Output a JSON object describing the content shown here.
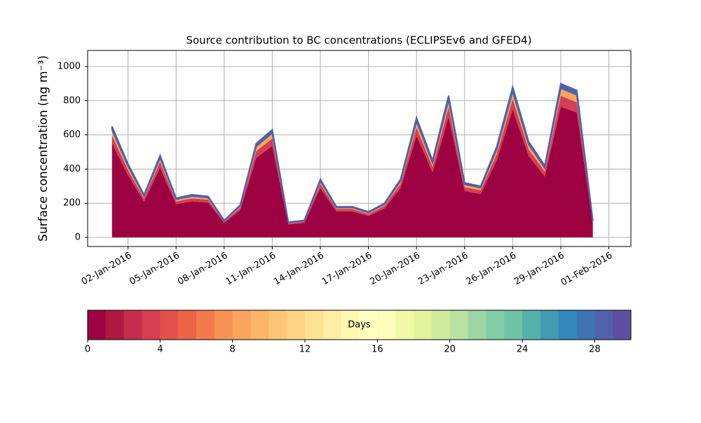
{
  "chart_data": {
    "type": "stacked_area",
    "title": "Source contribution to BC concentrations (ECLIPSEv6 and GFED4)",
    "ylabel": "Surface concentration (ng m⁻³)",
    "x": [
      "2016-01-01",
      "2016-01-02",
      "2016-01-03",
      "2016-01-04",
      "2016-01-05",
      "2016-01-06",
      "2016-01-07",
      "2016-01-08",
      "2016-01-09",
      "2016-01-10",
      "2016-01-11",
      "2016-01-12",
      "2016-01-13",
      "2016-01-14",
      "2016-01-15",
      "2016-01-16",
      "2016-01-17",
      "2016-01-18",
      "2016-01-19",
      "2016-01-20",
      "2016-01-21",
      "2016-01-22",
      "2016-01-23",
      "2016-01-24",
      "2016-01-25",
      "2016-01-26",
      "2016-01-27",
      "2016-01-28",
      "2016-01-29",
      "2016-01-30",
      "2016-01-31"
    ],
    "series": [
      {
        "color": "#9e0142",
        "values": [
          551,
          365,
          211,
          408,
          195,
          211,
          204,
          85,
          161,
          466,
          535,
          76,
          85,
          289,
          153,
          153,
          126,
          170,
          289,
          595,
          381,
          705,
          272,
          255,
          450,
          748,
          476,
          357,
          765,
          731,
          85
        ]
      },
      {
        "color": "#d63f4f",
        "values": [
          46,
          30,
          18,
          34,
          16,
          18,
          17,
          7,
          13,
          39,
          44,
          6,
          7,
          24,
          13,
          13,
          11,
          14,
          24,
          49,
          32,
          58,
          22,
          21,
          37,
          62,
          39,
          29,
          63,
          60,
          7
        ]
      },
      {
        "color": "#fca55f",
        "values": [
          33,
          22,
          13,
          24,
          12,
          13,
          12,
          5,
          10,
          28,
          32,
          5,
          5,
          17,
          9,
          9,
          8,
          10,
          17,
          35,
          23,
          42,
          16,
          15,
          27,
          44,
          28,
          21,
          45,
          43,
          5
        ]
      },
      {
        "color": "#4f61aa",
        "values": [
          20,
          13,
          8,
          14,
          7,
          8,
          7,
          3,
          6,
          17,
          19,
          3,
          3,
          10,
          5,
          5,
          5,
          6,
          10,
          21,
          14,
          25,
          10,
          9,
          16,
          26,
          17,
          13,
          27,
          26,
          3
        ]
      }
    ],
    "xlim": [
      "2015-12-30T11:30",
      "2016-02-02T09:00"
    ],
    "xticks": [
      {
        "value": "2016-01-02",
        "label": "02-Jan-2016"
      },
      {
        "value": "2016-01-05",
        "label": "05-Jan-2016"
      },
      {
        "value": "2016-01-08",
        "label": "08-Jan-2016"
      },
      {
        "value": "2016-01-11",
        "label": "11-Jan-2016"
      },
      {
        "value": "2016-01-14",
        "label": "14-Jan-2016"
      },
      {
        "value": "2016-01-17",
        "label": "17-Jan-2016"
      },
      {
        "value": "2016-01-20",
        "label": "20-Jan-2016"
      },
      {
        "value": "2016-01-23",
        "label": "23-Jan-2016"
      },
      {
        "value": "2016-01-26",
        "label": "26-Jan-2016"
      },
      {
        "value": "2016-01-29",
        "label": "29-Jan-2016"
      },
      {
        "value": "2016-02-01",
        "label": "01-Feb-2016"
      }
    ],
    "ylim": [
      -53,
      1094
    ],
    "yticks": [
      0,
      200,
      400,
      600,
      800,
      1000
    ],
    "grid": true,
    "colorbar": {
      "label": "Days",
      "lim": [
        0,
        30
      ],
      "ticks": [
        0,
        4,
        8,
        12,
        16,
        20,
        24,
        28
      ],
      "colors": [
        "#9e0142",
        "#b0183f",
        "#c42e4b",
        "#d63f4f",
        "#e2524a",
        "#eb6446",
        "#f47a4b",
        "#f89254",
        "#fca55f",
        "#fdb567",
        "#fec574",
        "#fdd486",
        "#fee294",
        "#feeda3",
        "#fff7b2",
        "#ffffbe",
        "#fbfdb8",
        "#f0f9a8",
        "#e4f49b",
        "#cfec9d",
        "#b7e2a1",
        "#9dd6a4",
        "#82cda5",
        "#6cc3a5",
        "#57b1ab",
        "#429ab4",
        "#3487bc",
        "#3f73b3",
        "#4f61aa",
        "#5e4fa2"
      ]
    }
  }
}
